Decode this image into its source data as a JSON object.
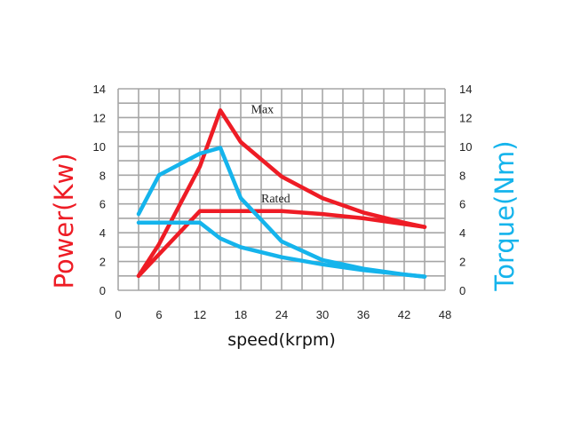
{
  "chart_data": {
    "type": "line",
    "xlabel": "speed(krpm)",
    "ylabel_left": "Power(Kw)",
    "ylabel_right": "Torque(Nm)",
    "xlim": [
      0,
      48
    ],
    "ylim_left": [
      0,
      14
    ],
    "ylim_right": [
      0,
      14
    ],
    "x_ticks": [
      0,
      6,
      12,
      18,
      24,
      30,
      36,
      42,
      48
    ],
    "y_ticks_left": [
      0,
      2,
      4,
      6,
      8,
      10,
      12,
      14
    ],
    "y_ticks_right": [
      0,
      2,
      4,
      6,
      8,
      10,
      12,
      14
    ],
    "grid": true,
    "annotations": [
      {
        "text": "Max",
        "x": 19.5,
        "y": 12.3
      },
      {
        "text": "Rated",
        "x": 21.0,
        "y": 6.1
      }
    ],
    "series": [
      {
        "color": "#ee1c25",
        "axis": "left",
        "x": [
          3,
          6,
          12,
          15,
          18,
          24,
          30,
          36,
          42,
          45
        ],
        "y": [
          1.0,
          3.2,
          8.6,
          12.5,
          10.3,
          7.9,
          6.4,
          5.4,
          4.7,
          4.4
        ]
      },
      {
        "color": "#ee1c25",
        "axis": "left",
        "x": [
          3,
          12,
          15,
          24,
          30,
          36,
          42,
          45
        ],
        "y": [
          1.0,
          5.5,
          5.5,
          5.5,
          5.3,
          5.0,
          4.6,
          4.4
        ]
      },
      {
        "color": "#15b4ec",
        "axis": "right",
        "x": [
          3,
          6,
          12,
          15,
          18,
          24,
          30,
          36,
          42,
          45
        ],
        "y": [
          5.3,
          8.0,
          9.5,
          9.9,
          6.4,
          3.4,
          2.1,
          1.5,
          1.1,
          0.95
        ]
      },
      {
        "color": "#15b4ec",
        "axis": "right",
        "x": [
          3,
          12,
          15,
          18,
          24,
          30,
          36,
          42,
          45
        ],
        "y": [
          4.7,
          4.7,
          3.6,
          3.0,
          2.3,
          1.8,
          1.4,
          1.1,
          0.95
        ]
      }
    ]
  },
  "colors": {
    "power": "#ee1c25",
    "torque": "#15b4ec",
    "grid": "#a6a6a6"
  }
}
